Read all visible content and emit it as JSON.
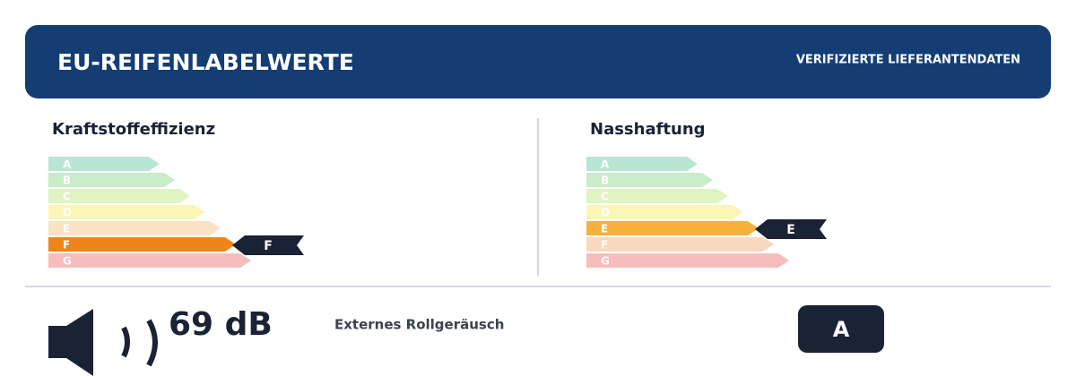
{
  "header": {
    "title": "EU-REIFENLABELWERTE",
    "badge": "VERIFIZIERTE LIEFERANTENDATEN"
  },
  "fuel_efficiency": {
    "title": "Kraftstoffeffizienz",
    "classes": [
      "A",
      "B",
      "C",
      "D",
      "E",
      "F",
      "G"
    ],
    "rating": "F"
  },
  "wet_grip": {
    "title": "Nasshaftung",
    "classes": [
      "A",
      "B",
      "C",
      "D",
      "E",
      "F",
      "G"
    ],
    "rating": "E"
  },
  "noise": {
    "value": "69 dB",
    "label": "Externes Rollgeräusch",
    "class": "A"
  }
}
